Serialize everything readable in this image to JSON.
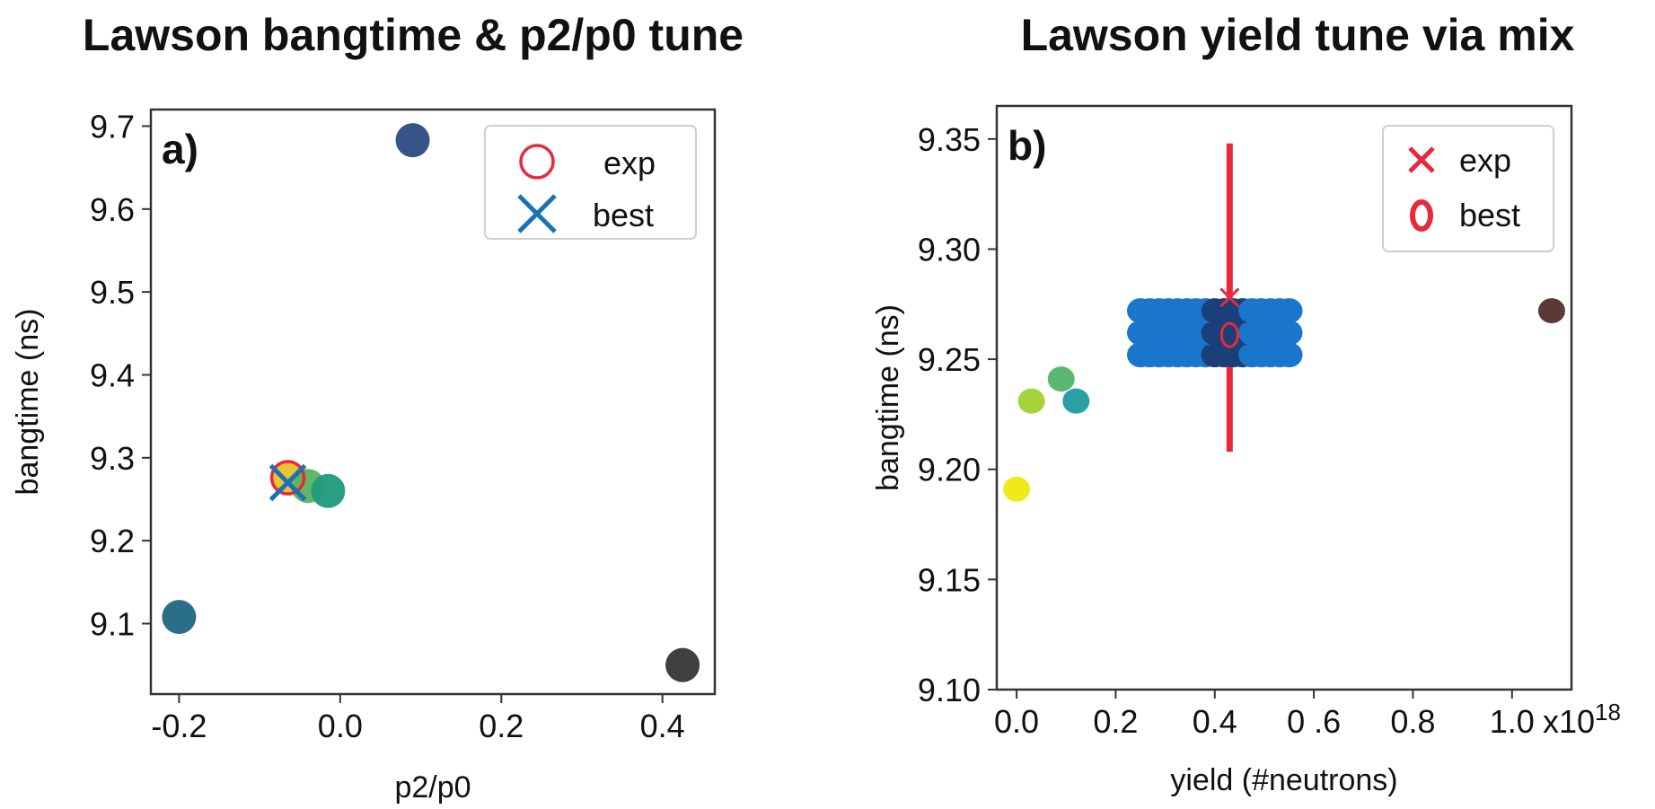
{
  "chart_data": [
    {
      "type": "scatter",
      "title": "Lawson bangtime & p2/p0 tune",
      "panel_label": "a)",
      "xlabel": "p2/p0",
      "ylabel": "bangtime (ns)",
      "xlim": [
        -0.235,
        0.465
      ],
      "ylim": [
        9.015,
        9.72
      ],
      "xticks": [
        -0.2,
        0.0,
        0.2,
        0.4
      ],
      "xtick_labels": [
        "-0.2",
        "0.0",
        "0.2",
        "0.4"
      ],
      "yticks": [
        9.1,
        9.2,
        9.3,
        9.4,
        9.5,
        9.6,
        9.7
      ],
      "ytick_labels": [
        "9.1",
        "9.2",
        "9.3",
        "9.4",
        "9.5",
        "9.6",
        "9.7"
      ],
      "grid": false,
      "legend_position": "top-right",
      "legend": [
        "exp",
        "best"
      ],
      "points": [
        {
          "x": 0.09,
          "y": 9.683,
          "color": "#2c4a82"
        },
        {
          "x": -0.2,
          "y": 9.108,
          "color": "#1f6681"
        },
        {
          "x": 0.425,
          "y": 9.05,
          "color": "#353535"
        },
        {
          "x": -0.065,
          "y": 9.275,
          "color": "#e8c22a"
        },
        {
          "x": -0.04,
          "y": 9.266,
          "color": "#57b360"
        },
        {
          "x": -0.015,
          "y": 9.26,
          "color": "#1f9a7c"
        }
      ],
      "exp": {
        "x": -0.065,
        "y": 9.276,
        "color": "#e8283c"
      },
      "best": {
        "x": -0.065,
        "y": 9.27,
        "color": "#1a72b6"
      }
    },
    {
      "type": "scatter",
      "title": "Lawson yield tune via mix",
      "panel_label": "b)",
      "xlabel": "yield (#neutrons)",
      "ylabel": "bangtime (ns)",
      "x_multiplier_label": "x10",
      "x_multiplier_exponent": "18",
      "xlim": [
        -0.04,
        1.12
      ],
      "ylim": [
        9.1,
        9.365
      ],
      "xticks": [
        0.0,
        0.2,
        0.4,
        0.6,
        0.8,
        1.0
      ],
      "xtick_labels": [
        "0.0",
        "0.2",
        "0.4",
        "0 .6",
        "0.8",
        "1.0"
      ],
      "yticks": [
        9.1,
        9.15,
        9.2,
        9.25,
        9.3,
        9.35
      ],
      "ytick_labels": [
        "9.10",
        "9.15",
        "9.20",
        "9.25",
        "9.30",
        "9.35"
      ],
      "grid": false,
      "legend_position": "top-right",
      "legend": [
        "exp",
        "best"
      ],
      "points": [
        {
          "x": 0.0,
          "y": 9.191,
          "color": "#f0ea1a"
        },
        {
          "x": 0.03,
          "y": 9.231,
          "color": "#a6d23a"
        },
        {
          "x": 0.09,
          "y": 9.241,
          "color": "#5ab870"
        },
        {
          "x": 0.12,
          "y": 9.231,
          "color": "#2aa0a4"
        },
        {
          "x": 1.08,
          "y": 9.272,
          "color": "#5a3a36"
        }
      ],
      "cluster": {
        "x_range": [
          0.25,
          0.55
        ],
        "y_values": [
          9.252,
          9.262,
          9.272
        ],
        "color": "#1976cc",
        "center_color": "#1b3f78"
      },
      "exp": {
        "x": 0.43,
        "y": 9.278,
        "y_err": [
          9.208,
          9.348
        ],
        "color": "#e8283c"
      },
      "best": {
        "x": 0.43,
        "y": 9.261,
        "color": "#e8283c"
      }
    }
  ]
}
